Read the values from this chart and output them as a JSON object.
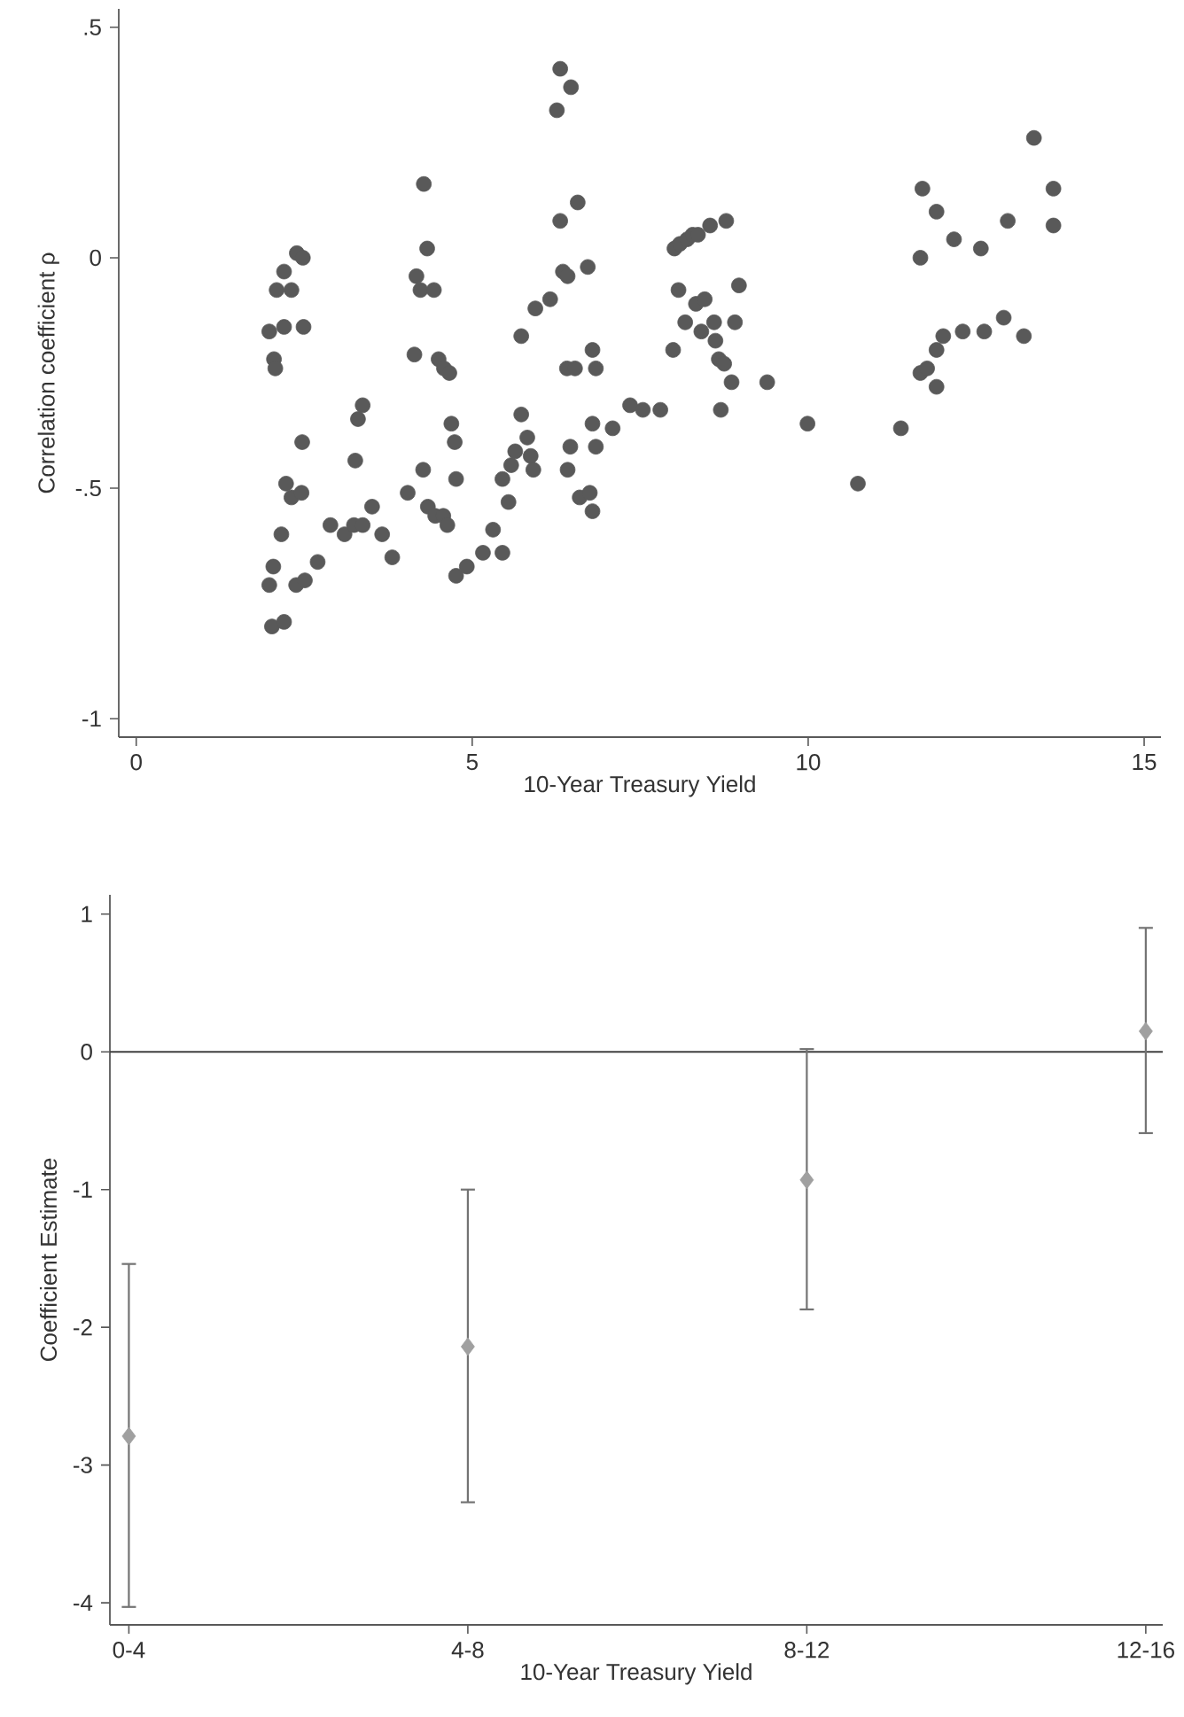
{
  "chart_data": [
    {
      "type": "scatter",
      "xlabel": "10-Year Treasury Yield",
      "ylabel": "Correlation coefficient ρ",
      "marker": "circle",
      "color": "#595959",
      "xlim": [
        -0.26,
        15.25
      ],
      "ylim": [
        -1.04,
        0.54
      ],
      "xticks": [
        0,
        5,
        10,
        15
      ],
      "yticks": [
        {
          "value": 0.5,
          "label": ".5"
        },
        {
          "value": 0,
          "label": "0"
        },
        {
          "value": -0.5,
          "label": "-.5"
        },
        {
          "value": -1,
          "label": "-1"
        }
      ],
      "x": [
        1.98,
        2.05,
        2.07,
        2.2,
        2.09,
        2.2,
        2.31,
        2.39,
        2.48,
        2.49,
        2.47,
        2.23,
        2.31,
        2.46,
        2.16,
        2.04,
        1.98,
        2.02,
        2.2,
        2.38,
        2.51,
        2.7,
        2.89,
        3.1,
        3.24,
        3.37,
        3.51,
        3.66,
        3.81,
        3.26,
        3.3,
        3.37,
        4.04,
        4.14,
        4.17,
        4.23,
        4.27,
        4.28,
        4.33,
        4.43,
        4.5,
        4.58,
        4.66,
        4.34,
        4.45,
        4.57,
        4.63,
        4.69,
        4.74,
        4.76,
        4.76,
        4.92,
        5.16,
        5.31,
        5.45,
        5.45,
        5.54,
        5.58,
        5.64,
        5.73,
        5.73,
        5.82,
        5.87,
        5.91,
        5.94,
        6.16,
        6.26,
        6.31,
        6.47,
        6.31,
        6.57,
        6.35,
        6.42,
        6.72,
        6.41,
        6.53,
        6.46,
        6.42,
        6.79,
        6.84,
        6.79,
        6.84,
        6.6,
        6.79,
        6.75,
        7.09,
        7.35,
        7.54,
        7.8,
        7.99,
        8.07,
        8.01,
        8.09,
        8.2,
        8.28,
        8.36,
        8.54,
        8.78,
        8.17,
        8.33,
        8.46,
        8.6,
        8.41,
        8.62,
        8.67,
        8.75,
        8.86,
        8.7,
        8.91,
        8.97,
        9.39,
        9.99,
        10.74,
        11.38,
        11.7,
        11.67,
        11.91,
        12.17,
        12.57,
        12.97,
        13.36,
        13.65,
        13.65,
        11.67,
        11.77,
        11.91,
        11.91,
        12.01,
        12.3,
        12.62,
        12.91,
        13.21
      ],
      "values": [
        -0.16,
        -0.22,
        -0.24,
        -0.15,
        -0.07,
        -0.03,
        -0.07,
        0.01,
        0.0,
        -0.15,
        -0.4,
        -0.49,
        -0.52,
        -0.51,
        -0.6,
        -0.67,
        -0.71,
        -0.8,
        -0.79,
        -0.71,
        -0.7,
        -0.66,
        -0.58,
        -0.6,
        -0.58,
        -0.58,
        -0.54,
        -0.6,
        -0.65,
        -0.44,
        -0.35,
        -0.32,
        -0.51,
        -0.21,
        -0.04,
        -0.07,
        -0.46,
        0.16,
        0.02,
        -0.07,
        -0.22,
        -0.24,
        -0.25,
        -0.54,
        -0.56,
        -0.56,
        -0.58,
        -0.36,
        -0.4,
        -0.48,
        -0.69,
        -0.67,
        -0.64,
        -0.59,
        -0.64,
        -0.48,
        -0.53,
        -0.45,
        -0.42,
        -0.34,
        -0.17,
        -0.39,
        -0.43,
        -0.46,
        -0.11,
        -0.09,
        0.32,
        0.41,
        0.37,
        0.08,
        0.12,
        -0.03,
        -0.04,
        -0.02,
        -0.24,
        -0.24,
        -0.41,
        -0.46,
        -0.2,
        -0.24,
        -0.36,
        -0.41,
        -0.52,
        -0.55,
        -0.51,
        -0.37,
        -0.32,
        -0.33,
        -0.33,
        -0.2,
        -0.07,
        0.02,
        0.03,
        0.04,
        0.05,
        0.05,
        0.07,
        0.08,
        -0.14,
        -0.1,
        -0.09,
        -0.14,
        -0.16,
        -0.18,
        -0.22,
        -0.23,
        -0.27,
        -0.33,
        -0.14,
        -0.06,
        -0.27,
        -0.36,
        -0.49,
        -0.37,
        0.15,
        0.0,
        0.1,
        0.04,
        0.02,
        0.08,
        0.26,
        0.15,
        0.07,
        -0.25,
        -0.24,
        -0.2,
        -0.28,
        -0.17,
        -0.16,
        -0.16,
        -0.13,
        -0.17
      ]
    },
    {
      "type": "scatter",
      "xlabel": "10-Year Treasury Yield",
      "ylabel": "Coefficient Estimate",
      "marker": "diamond",
      "color": "#a0a0a0",
      "categories": [
        "0-4",
        "4-8",
        "8-12",
        "12-16"
      ],
      "values": [
        -2.79,
        -2.14,
        -0.93,
        0.15
      ],
      "errors": [
        [
          -4.03,
          -1.54
        ],
        [
          -3.27,
          -1.0
        ],
        [
          -1.87,
          0.02
        ],
        [
          -0.59,
          0.9
        ]
      ],
      "ylim": [
        -4.16,
        1.14
      ],
      "yticks": [
        1,
        0,
        -1,
        -2,
        -3,
        -4
      ],
      "ref_lines": [
        {
          "axis": "y",
          "value": 0,
          "color": "#404040"
        }
      ]
    }
  ]
}
